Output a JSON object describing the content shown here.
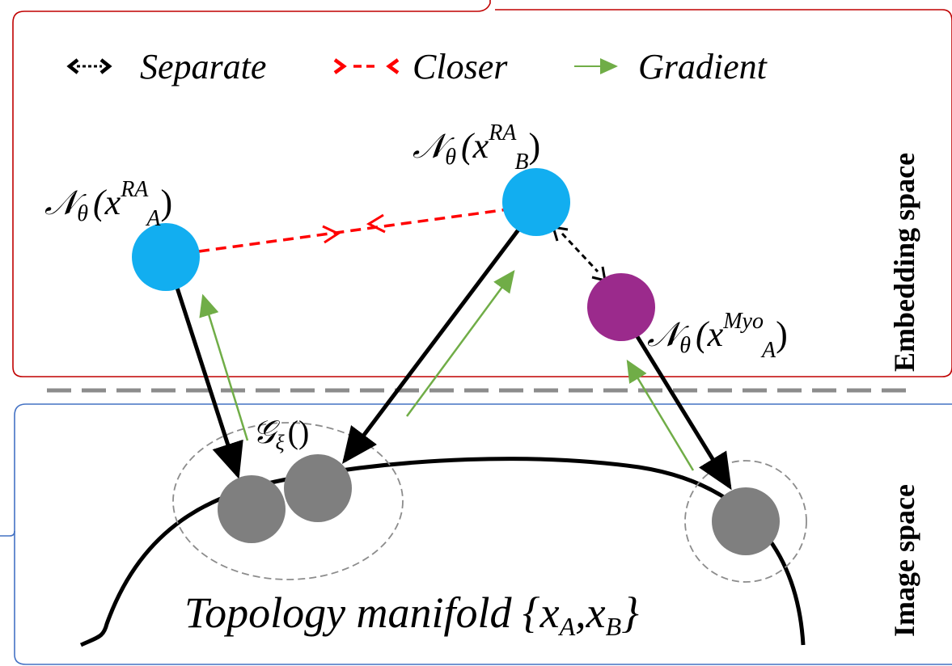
{
  "panels": {
    "embedding": {
      "label": "Embedding space",
      "border_color": "#c00000"
    },
    "image": {
      "label": "Image space",
      "border_color": "#4472c4"
    }
  },
  "legend": {
    "items": [
      {
        "symbol": "<->",
        "label": "Separate",
        "color": "#000000"
      },
      {
        "symbol": ">-<",
        "label": "Closer",
        "color": "#ff0000"
      },
      {
        "symbol": "→",
        "label": "Gradient",
        "color": "#70ad47"
      }
    ]
  },
  "nodes": {
    "n_ra_a": {
      "script": "𝒩",
      "sub": "θ",
      "open": "(x",
      "sup": "RA",
      "idx": "A",
      "close": ")",
      "color": "#12aef0"
    },
    "n_ra_b": {
      "script": "𝒩",
      "sub": "θ",
      "open": "(x",
      "sup": "RA",
      "idx": "B",
      "close": ")",
      "color": "#12aef0"
    },
    "n_myo_a": {
      "script": "𝒩",
      "sub": "θ",
      "open": "(x",
      "sup": "Myo",
      "idx": "A",
      "close": ")",
      "color": "#9b2a8c"
    }
  },
  "generator": {
    "script": "𝒢",
    "sub": "ξ",
    "args": "()"
  },
  "image_points_color": "#7f7f7f",
  "manifold": {
    "prefix": "Topology manifold {x",
    "sub1": "A",
    "mid": ",x",
    "sub2": "B",
    "suffix": "}"
  }
}
